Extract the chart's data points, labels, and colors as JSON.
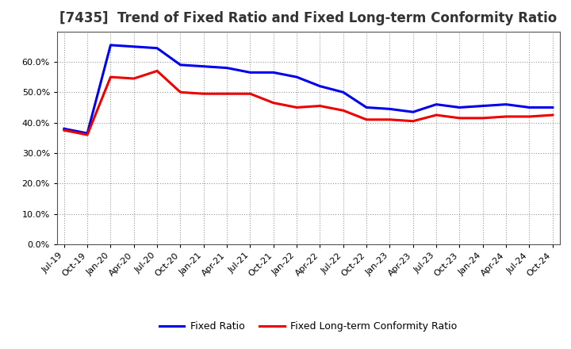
{
  "title": "[7435]  Trend of Fixed Ratio and Fixed Long-term Conformity Ratio",
  "x_labels": [
    "Jul-19",
    "Oct-19",
    "Jan-20",
    "Apr-20",
    "Jul-20",
    "Oct-20",
    "Jan-21",
    "Apr-21",
    "Jul-21",
    "Oct-21",
    "Jan-22",
    "Apr-22",
    "Jul-22",
    "Oct-22",
    "Jan-23",
    "Apr-23",
    "Jul-23",
    "Oct-23",
    "Jan-24",
    "Apr-24",
    "Jul-24",
    "Oct-24"
  ],
  "fixed_ratio": [
    38.0,
    36.5,
    65.5,
    65.0,
    64.5,
    59.0,
    58.5,
    58.0,
    56.5,
    56.5,
    55.0,
    52.0,
    50.0,
    45.0,
    44.5,
    43.5,
    46.0,
    45.0,
    45.5,
    46.0,
    45.0,
    45.0
  ],
  "fixed_lt_conformity": [
    37.5,
    36.0,
    55.0,
    54.5,
    57.0,
    50.0,
    49.5,
    49.5,
    49.5,
    46.5,
    45.0,
    45.5,
    44.0,
    41.0,
    41.0,
    40.5,
    42.5,
    41.5,
    41.5,
    42.0,
    42.0,
    42.5
  ],
  "fixed_ratio_color": "#0000EE",
  "fixed_lt_color": "#EE0000",
  "ylim": [
    0,
    70
  ],
  "yticks": [
    0,
    10,
    20,
    30,
    40,
    50,
    60
  ],
  "background_color": "#FFFFFF",
  "grid_color": "#999999",
  "title_fontsize": 12,
  "tick_fontsize": 8,
  "legend_fontsize": 9
}
